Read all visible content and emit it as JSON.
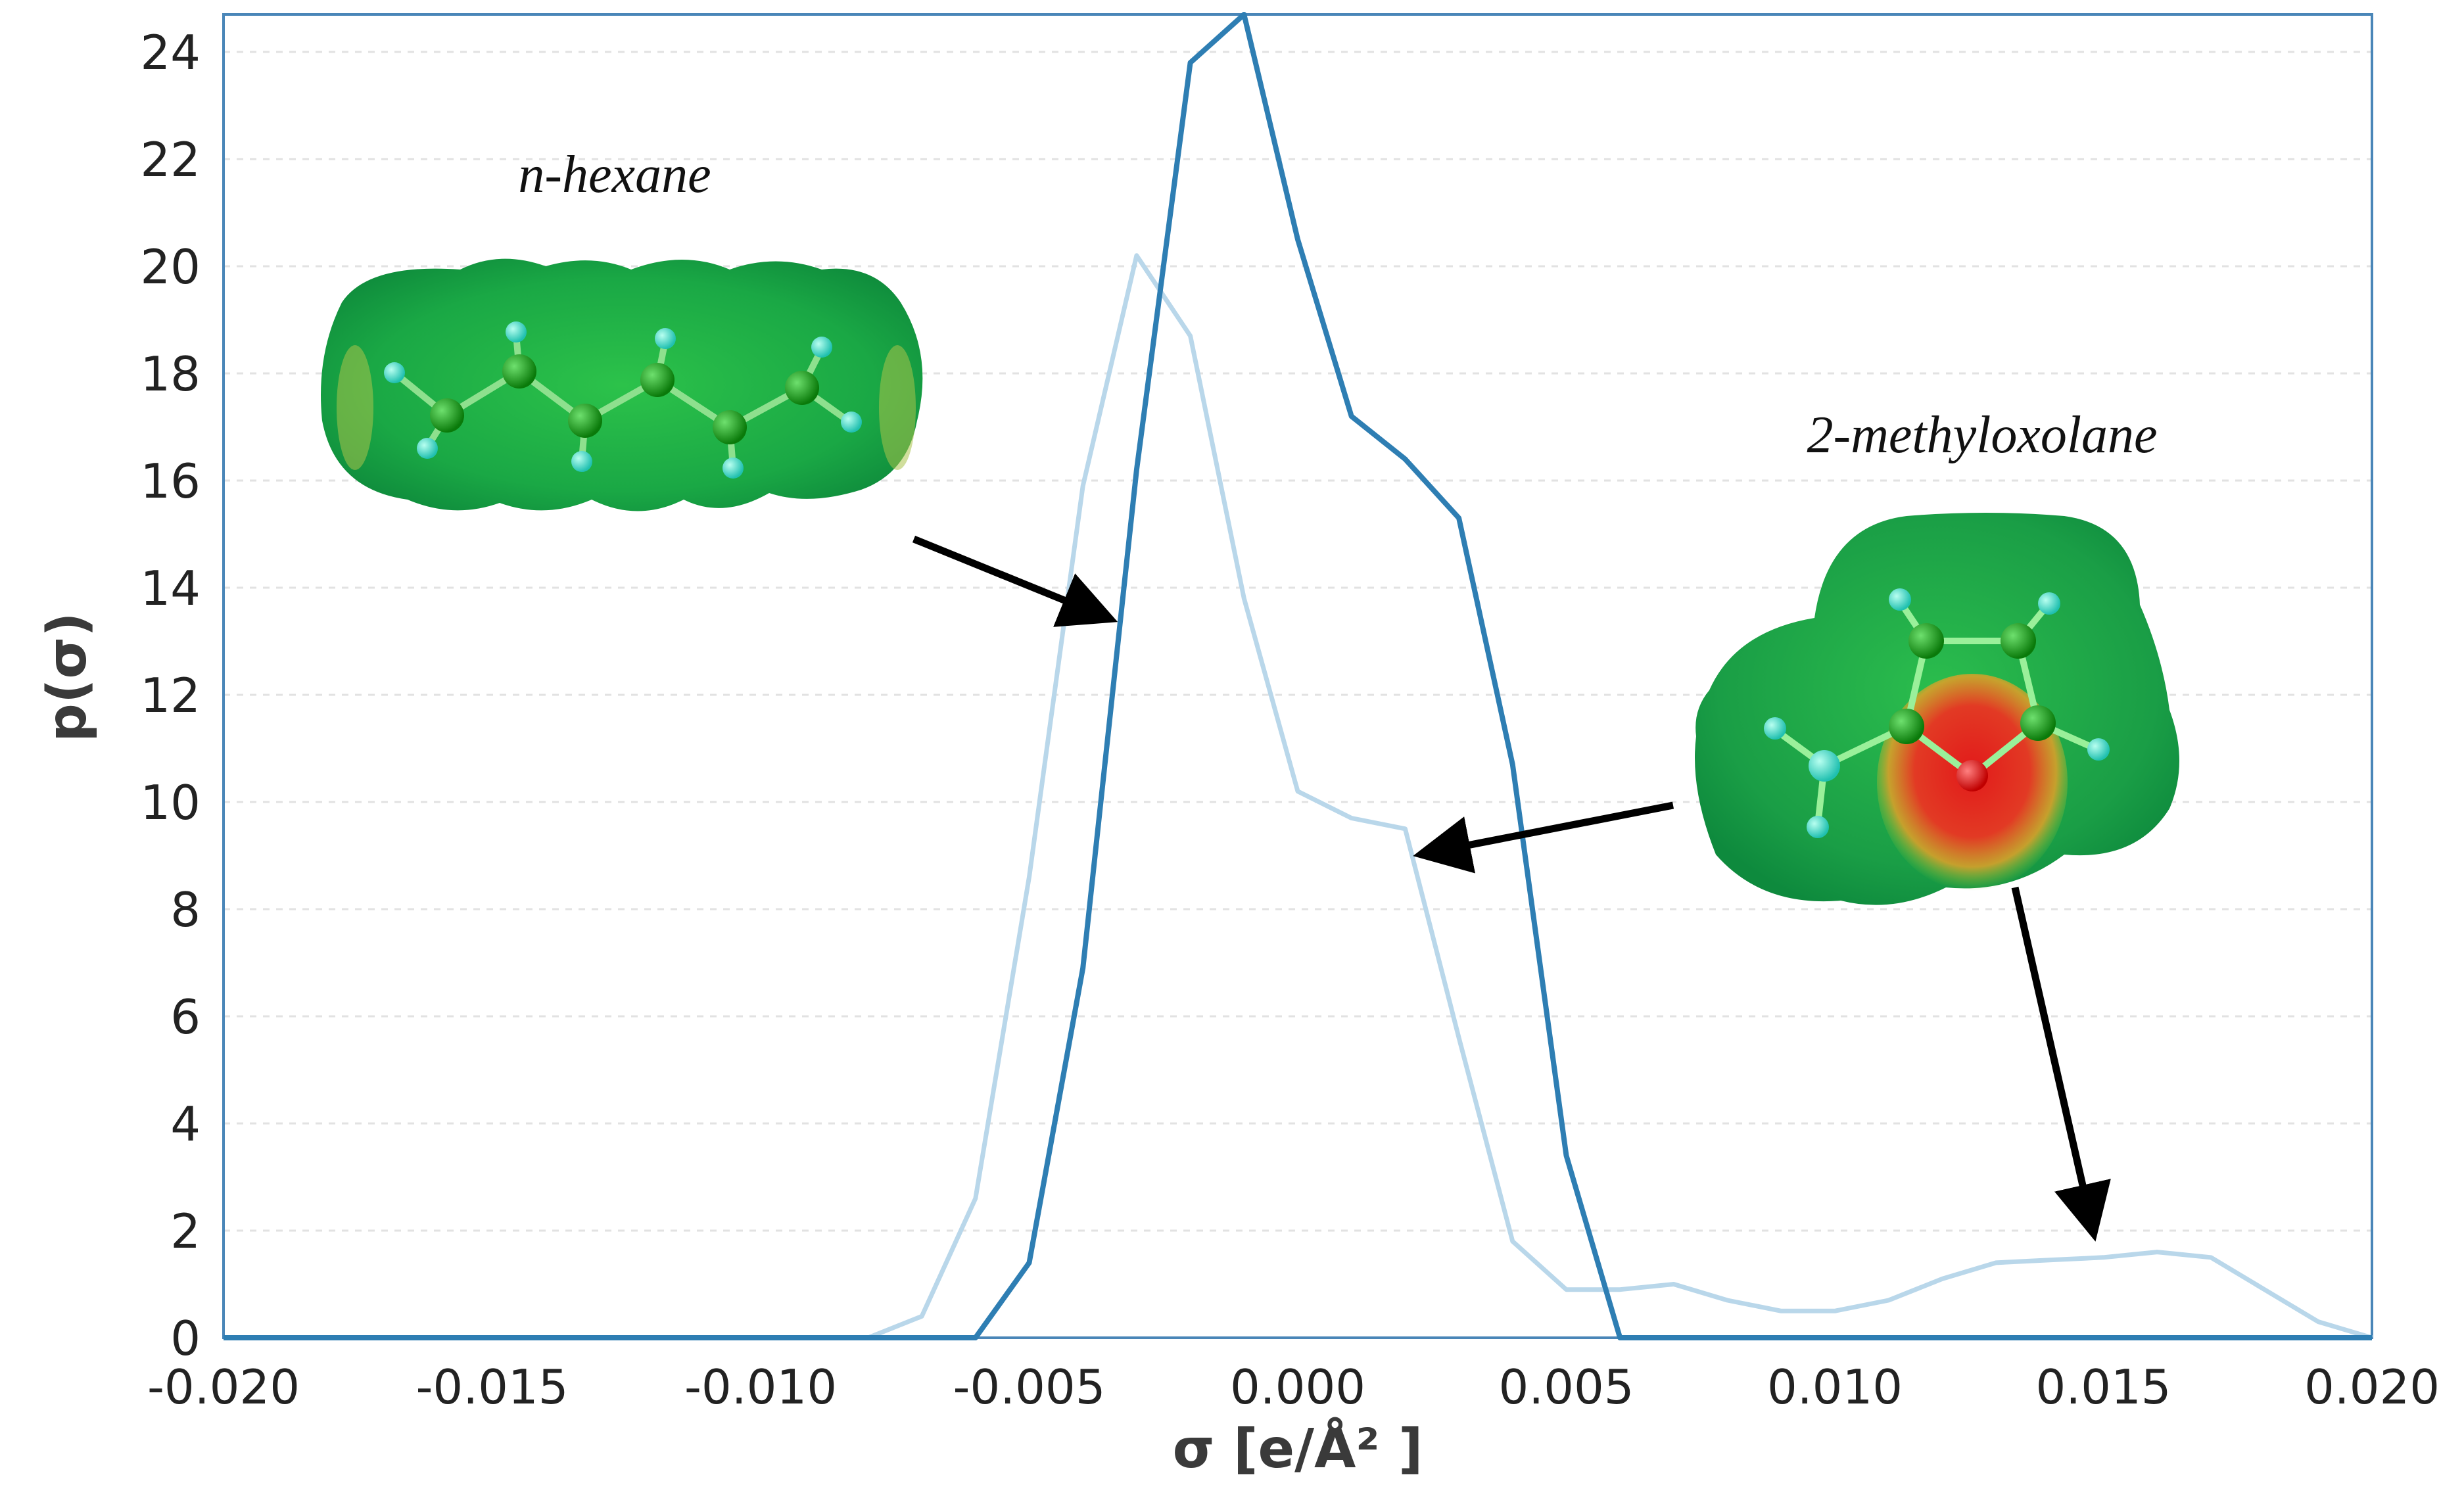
{
  "chart_data": {
    "type": "line",
    "xlabel": "σ [e/Å² ]",
    "ylabel": "p(σ)",
    "xlim": [
      -0.02,
      0.02
    ],
    "ylim": [
      0,
      24.7
    ],
    "x_ticks": [
      "-0.020",
      "-0.015",
      "-0.010",
      "-0.005",
      "0.000",
      "0.005",
      "0.010",
      "0.015",
      "0.020"
    ],
    "y_ticks": [
      "0",
      "2",
      "4",
      "6",
      "8",
      "10",
      "12",
      "14",
      "16",
      "18",
      "20",
      "22",
      "24"
    ],
    "grid": true,
    "series": [
      {
        "color": "#2e7eb3",
        "molecule": "n-hexane",
        "x": [
          -0.02,
          -0.006,
          -0.005,
          -0.004,
          -0.003,
          -0.002,
          -0.001,
          0.0,
          0.001,
          0.002,
          0.003,
          0.004,
          0.005,
          0.006,
          0.02
        ],
        "y": [
          0,
          0,
          1.4,
          6.9,
          16.2,
          23.8,
          24.7,
          20.5,
          17.2,
          16.4,
          15.3,
          10.7,
          3.4,
          0,
          0
        ]
      },
      {
        "color": "#b9d7ea",
        "molecule": "2-methyloxolane",
        "x": [
          -0.02,
          -0.008,
          -0.007,
          -0.006,
          -0.005,
          -0.004,
          -0.003,
          -0.002,
          -0.001,
          0.0,
          0.001,
          0.002,
          0.003,
          0.004,
          0.005,
          0.006,
          0.007,
          0.008,
          0.009,
          0.01,
          0.011,
          0.012,
          0.013,
          0.014,
          0.015,
          0.016,
          0.017,
          0.018,
          0.019,
          0.02
        ],
        "y": [
          0,
          0,
          0.4,
          2.6,
          8.6,
          15.9,
          20.2,
          18.7,
          13.8,
          10.2,
          9.7,
          9.5,
          5.6,
          1.8,
          0.9,
          0.9,
          1.0,
          0.7,
          0.5,
          0.5,
          0.7,
          1.1,
          1.4,
          1.45,
          1.5,
          1.6,
          1.5,
          0.9,
          0.3,
          0
        ]
      }
    ],
    "annotations": [
      {
        "text": "n-hexane",
        "arrow_to": {
          "x": -0.003,
          "y": 13.3
        }
      },
      {
        "text": "2-methyloxolane",
        "arrow_to": [
          {
            "x": 0.0023,
            "y": 8.9
          },
          {
            "x": 0.0153,
            "y": 1.7
          }
        ]
      }
    ]
  },
  "colors": {
    "axis": "#4a86b8",
    "grid": "#e2e2e2",
    "arrow": "#000000",
    "surface_green": "#1fb54a",
    "surface_red": "#e02020",
    "hydrogen_atom": "#40e0c8",
    "carbon_atom": "#14a014",
    "oxygen_atom": "#ff0000"
  }
}
